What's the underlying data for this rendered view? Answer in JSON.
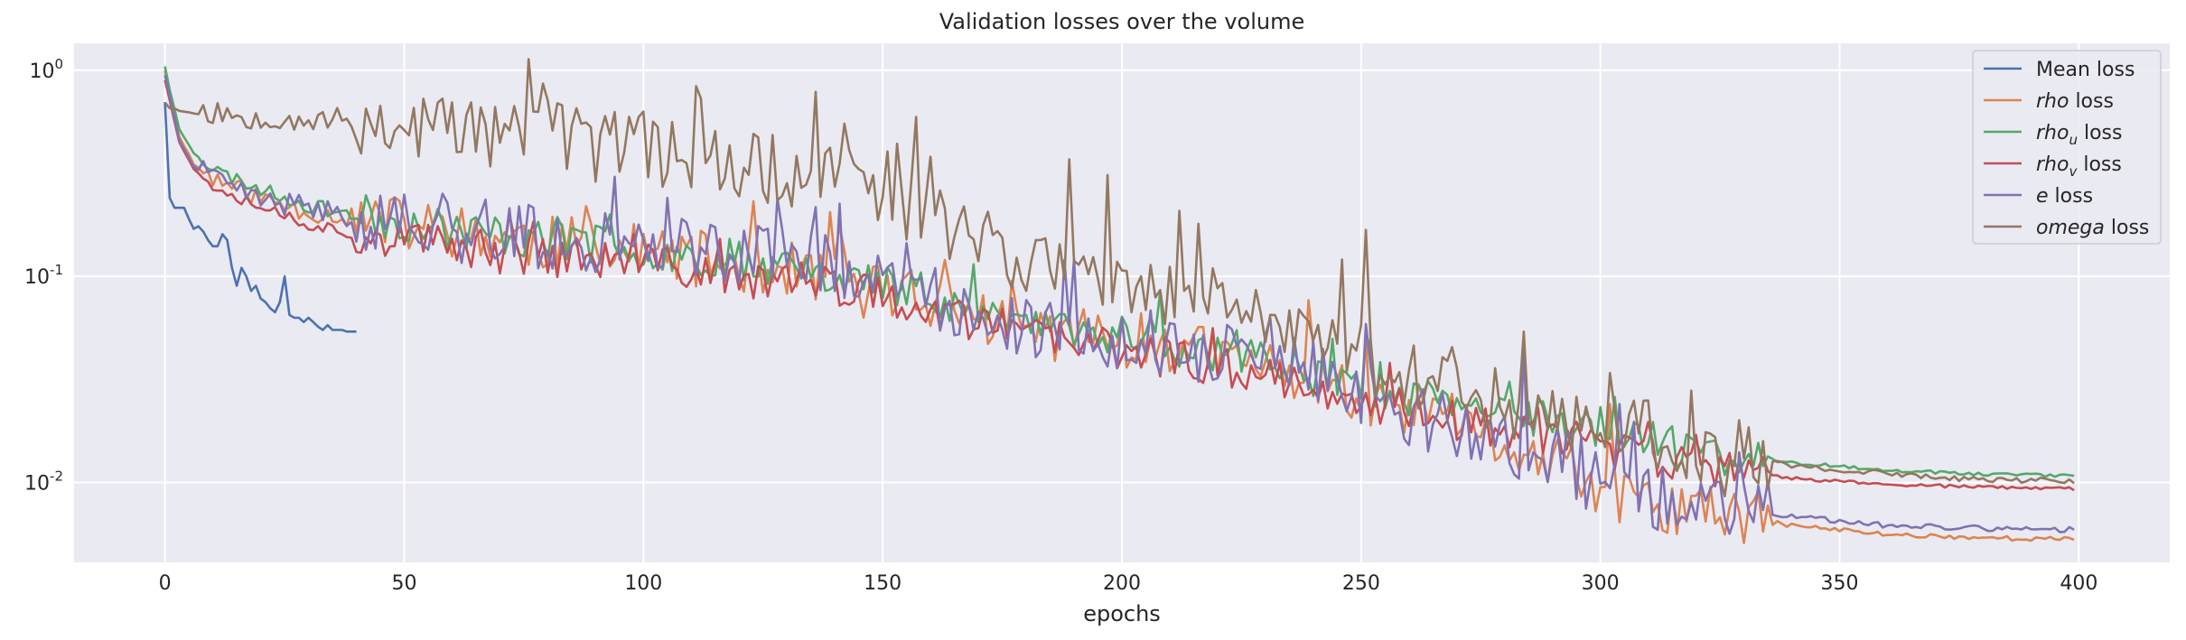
{
  "chart_data": {
    "type": "line",
    "title": "Validation losses over the volume",
    "xlabel": "epochs",
    "ylabel": "",
    "yscale": "log",
    "xlim": [
      -19,
      419
    ],
    "ylim": [
      0.0041,
      1.35
    ],
    "xticks": [
      0,
      50,
      100,
      150,
      200,
      250,
      300,
      350,
      400
    ],
    "xtick_labels": [
      "0",
      "50",
      "100",
      "150",
      "200",
      "250",
      "300",
      "350",
      "400"
    ],
    "yticks": [
      0.01,
      0.1,
      1
    ],
    "ytick_labels": [
      {
        "base": "10",
        "exp": "-2"
      },
      {
        "base": "10",
        "exp": "-1"
      },
      {
        "base": "10",
        "exp": "0"
      }
    ],
    "grid": true,
    "legend_position": "top-right",
    "series": [
      {
        "name": "Mean loss",
        "color": "#4c72b0",
        "x": [
          0,
          1,
          2,
          3,
          4,
          5,
          6,
          7,
          8,
          9,
          10,
          11,
          12,
          13,
          14,
          15,
          16,
          17,
          18,
          19,
          20,
          21,
          22,
          23,
          24,
          25,
          26,
          27,
          28,
          29,
          30,
          31,
          32,
          33,
          34,
          35,
          36,
          37,
          38,
          39,
          40
        ],
        "y": [
          0.7,
          0.24,
          0.215,
          0.215,
          0.215,
          0.19,
          0.17,
          0.175,
          0.165,
          0.15,
          0.14,
          0.14,
          0.16,
          0.15,
          0.11,
          0.09,
          0.11,
          0.1,
          0.085,
          0.09,
          0.078,
          0.075,
          0.07,
          0.067,
          0.075,
          0.1,
          0.065,
          0.063,
          0.063,
          0.06,
          0.063,
          0.06,
          0.057,
          0.055,
          0.058,
          0.055,
          0.055,
          0.055,
          0.054,
          0.054,
          0.054
        ]
      },
      {
        "name": "rho loss",
        "legend_main": "rho",
        "legend_sub": "",
        "color": "#dd8452",
        "anchors": [
          [
            0,
            1.0
          ],
          [
            1,
            0.75
          ],
          [
            3,
            0.48
          ],
          [
            6,
            0.35
          ],
          [
            10,
            0.3
          ],
          [
            20,
            0.24
          ],
          [
            30,
            0.205
          ],
          [
            40,
            0.19
          ],
          [
            60,
            0.165
          ],
          [
            80,
            0.145
          ],
          [
            100,
            0.13
          ],
          [
            120,
            0.115
          ],
          [
            140,
            0.1
          ],
          [
            160,
            0.075
          ],
          [
            180,
            0.055
          ],
          [
            200,
            0.05
          ],
          [
            220,
            0.041
          ],
          [
            240,
            0.033
          ],
          [
            260,
            0.02
          ],
          [
            280,
            0.015
          ],
          [
            300,
            0.0095
          ],
          [
            304,
            0.0082
          ],
          [
            320,
            0.0072
          ],
          [
            340,
            0.0062
          ],
          [
            360,
            0.0056
          ],
          [
            380,
            0.0054
          ],
          [
            399,
            0.0053
          ]
        ],
        "noise": 0.14,
        "seed": 11
      },
      {
        "name": "rho_u loss",
        "legend_main": "rho",
        "legend_sub": "u",
        "color": "#55a868",
        "anchors": [
          [
            0,
            1.05
          ],
          [
            1,
            0.8
          ],
          [
            3,
            0.52
          ],
          [
            6,
            0.4
          ],
          [
            10,
            0.33
          ],
          [
            20,
            0.265
          ],
          [
            30,
            0.22
          ],
          [
            40,
            0.2
          ],
          [
            60,
            0.17
          ],
          [
            80,
            0.15
          ],
          [
            100,
            0.135
          ],
          [
            120,
            0.12
          ],
          [
            140,
            0.105
          ],
          [
            160,
            0.08
          ],
          [
            180,
            0.06
          ],
          [
            200,
            0.05
          ],
          [
            220,
            0.043
          ],
          [
            240,
            0.036
          ],
          [
            260,
            0.026
          ],
          [
            280,
            0.021
          ],
          [
            300,
            0.018
          ],
          [
            320,
            0.014
          ],
          [
            340,
            0.0125
          ],
          [
            360,
            0.0115
          ],
          [
            380,
            0.011
          ],
          [
            399,
            0.0108
          ]
        ],
        "noise": 0.1,
        "seed": 23
      },
      {
        "name": "rho_v loss",
        "legend_main": "rho",
        "legend_sub": "v",
        "color": "#c44e52",
        "anchors": [
          [
            0,
            0.9
          ],
          [
            1,
            0.72
          ],
          [
            3,
            0.45
          ],
          [
            6,
            0.33
          ],
          [
            10,
            0.28
          ],
          [
            20,
            0.22
          ],
          [
            30,
            0.18
          ],
          [
            40,
            0.16
          ],
          [
            60,
            0.14
          ],
          [
            80,
            0.125
          ],
          [
            100,
            0.115
          ],
          [
            120,
            0.1
          ],
          [
            140,
            0.09
          ],
          [
            160,
            0.07
          ],
          [
            180,
            0.052
          ],
          [
            200,
            0.044
          ],
          [
            220,
            0.037
          ],
          [
            240,
            0.03
          ],
          [
            260,
            0.022
          ],
          [
            280,
            0.018
          ],
          [
            300,
            0.015
          ],
          [
            320,
            0.0115
          ],
          [
            340,
            0.0105
          ],
          [
            360,
            0.0098
          ],
          [
            380,
            0.0095
          ],
          [
            399,
            0.0093
          ]
        ],
        "noise": 0.1,
        "seed": 37
      },
      {
        "name": "e loss",
        "legend_main": "e",
        "legend_sub": "",
        "color": "#8172b3",
        "anchors": [
          [
            0,
            0.95
          ],
          [
            1,
            0.74
          ],
          [
            3,
            0.46
          ],
          [
            6,
            0.34
          ],
          [
            10,
            0.3
          ],
          [
            20,
            0.235
          ],
          [
            30,
            0.215
          ],
          [
            40,
            0.195
          ],
          [
            60,
            0.175
          ],
          [
            80,
            0.15
          ],
          [
            100,
            0.14
          ],
          [
            120,
            0.125
          ],
          [
            140,
            0.11
          ],
          [
            160,
            0.08
          ],
          [
            180,
            0.058
          ],
          [
            200,
            0.05
          ],
          [
            220,
            0.042
          ],
          [
            240,
            0.034
          ],
          [
            260,
            0.021
          ],
          [
            280,
            0.016
          ],
          [
            300,
            0.01
          ],
          [
            304,
            0.0088
          ],
          [
            320,
            0.0078
          ],
          [
            340,
            0.0068
          ],
          [
            360,
            0.0062
          ],
          [
            380,
            0.006
          ],
          [
            399,
            0.0059
          ]
        ],
        "noise": 0.16,
        "seed": 41
      },
      {
        "name": "omega loss",
        "legend_main": "omega",
        "legend_sub": "",
        "color": "#937860",
        "anchors": [
          [
            0,
            0.7
          ],
          [
            1,
            0.66
          ],
          [
            5,
            0.62
          ],
          [
            20,
            0.6
          ],
          [
            40,
            0.56
          ],
          [
            60,
            0.53
          ],
          [
            80,
            0.48
          ],
          [
            100,
            0.42
          ],
          [
            120,
            0.36
          ],
          [
            130,
            0.32
          ],
          [
            140,
            0.29
          ],
          [
            150,
            0.25
          ],
          [
            160,
            0.2
          ],
          [
            170,
            0.16
          ],
          [
            180,
            0.12
          ],
          [
            190,
            0.1
          ],
          [
            200,
            0.09
          ],
          [
            220,
            0.068
          ],
          [
            240,
            0.055
          ],
          [
            250,
            0.05
          ],
          [
            260,
            0.035
          ],
          [
            270,
            0.03
          ],
          [
            280,
            0.025
          ],
          [
            300,
            0.019
          ],
          [
            320,
            0.015
          ],
          [
            340,
            0.012
          ],
          [
            360,
            0.011
          ],
          [
            380,
            0.0103
          ],
          [
            399,
            0.0102
          ]
        ],
        "noise": 0.18,
        "seed": 53
      }
    ],
    "spikes": [
      {
        "series": 5,
        "x": 91,
        "y": 0.49
      },
      {
        "series": 5,
        "x": 142,
        "y": 0.55
      },
      {
        "series": 5,
        "x": 143,
        "y": 0.41
      },
      {
        "series": 5,
        "x": 153,
        "y": 0.44
      },
      {
        "series": 5,
        "x": 160,
        "y": 0.38
      },
      {
        "series": 5,
        "x": 189,
        "y": 0.37
      },
      {
        "series": 5,
        "x": 197,
        "y": 0.31
      },
      {
        "series": 5,
        "x": 216,
        "y": 0.18
      },
      {
        "series": 5,
        "x": 251,
        "y": 0.168
      },
      {
        "series": 5,
        "x": 284,
        "y": 0.054
      },
      {
        "series": 5,
        "x": 302,
        "y": 0.034
      },
      {
        "series": 5,
        "x": 310,
        "y": 0.025
      },
      {
        "series": 4,
        "x": 141,
        "y": 0.225
      },
      {
        "series": 4,
        "x": 105,
        "y": 0.24
      },
      {
        "series": 4,
        "x": 188,
        "y": 0.12
      },
      {
        "series": 1,
        "x": 251,
        "y": 0.05
      },
      {
        "series": 2,
        "x": 251,
        "y": 0.052
      },
      {
        "series": 4,
        "x": 284,
        "y": 0.045
      },
      {
        "series": 1,
        "x": 302,
        "y": 0.024
      },
      {
        "series": 2,
        "x": 303,
        "y": 0.026
      },
      {
        "series": 4,
        "x": 304,
        "y": 0.024
      }
    ]
  }
}
